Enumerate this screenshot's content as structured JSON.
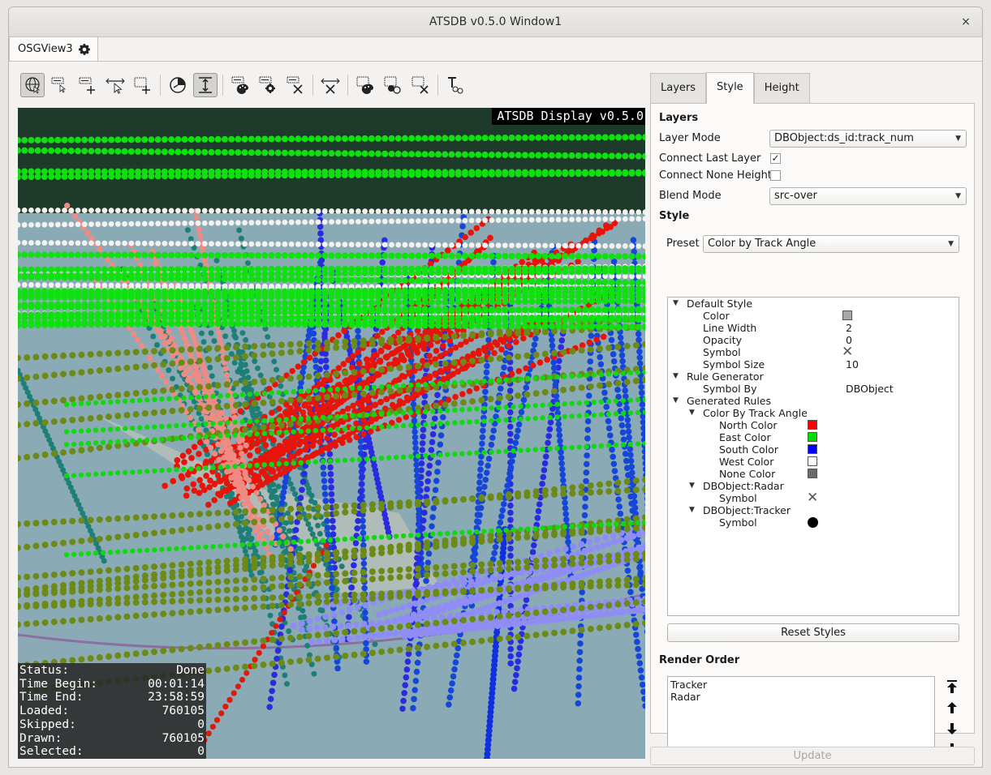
{
  "window": {
    "title": "ATSDB v0.5.0 Window1",
    "close_glyph": "×"
  },
  "doc_tab": {
    "label": "OSGView3",
    "icon": "gear-icon"
  },
  "toolbar": {
    "tools": [
      "navigate-globe-icon",
      "select-label-icon",
      "add-label-icon",
      "select-pointer-icon",
      "add-selection-icon",
      "time-filter-icon",
      "height-scale-icon",
      "label-palette-icon",
      "label-settings-icon",
      "label-clear-icon",
      "clear-selection-icon",
      "select-palette-icon",
      "select-colors-icon",
      "selection-clear-icon",
      "text-tool-icon"
    ],
    "active": "height-scale-icon"
  },
  "viewport": {
    "display_label": "ATSDB Display v0.5.0",
    "status": [
      {
        "key": "Status:",
        "value": "Done"
      },
      {
        "key": "Time Begin:",
        "value": "00:01:14"
      },
      {
        "key": "Time End:",
        "value": "23:58:59"
      },
      {
        "key": "Loaded:",
        "value": "760105"
      },
      {
        "key": "Skipped:",
        "value": "0"
      },
      {
        "key": "Drawn:",
        "value": "760105"
      },
      {
        "key": "Selected:",
        "value": "0"
      }
    ]
  },
  "right_panel": {
    "tabs": [
      "Layers",
      "Style",
      "Height"
    ],
    "active_tab": "Style",
    "layers_section": "Layers",
    "layer_mode_label": "Layer Mode",
    "layer_mode_value": "DBObject:ds_id:track_num",
    "connect_last_label": "Connect Last Layer",
    "connect_last_checked": "✓",
    "connect_none_label": "Connect None Height",
    "blend_mode_label": "Blend Mode",
    "blend_mode_value": "src-over",
    "style_section": "Style",
    "preset_label": "Preset",
    "preset_value": "Color by Track Angle",
    "tree": {
      "default_style": "Default Style",
      "color_label": "Color",
      "line_width_label": "Line Width",
      "line_width_value": "2",
      "opacity_label": "Opacity",
      "opacity_value": "0",
      "symbol_label": "Symbol",
      "symbol_size_label": "Symbol Size",
      "symbol_size_value": "10",
      "rule_generator": "Rule Generator",
      "symbol_by_label": "Symbol By",
      "symbol_by_value": "DBObject",
      "generated_rules": "Generated Rules",
      "color_by_track_angle": "Color By Track Angle",
      "north_color": "North Color",
      "east_color": "East Color",
      "south_color": "South Color",
      "west_color": "West Color",
      "none_color": "None Color",
      "dbobject_radar": "DBObject:Radar",
      "radar_symbol": "Symbol",
      "dbobject_tracker": "DBObject:Tracker",
      "tracker_symbol": "Symbol"
    },
    "colors": {
      "default": "#a8a8a8",
      "north": "#ff0000",
      "east": "#00e000",
      "south": "#0000ff",
      "west": "#ffffff",
      "none": "#6a6a6a"
    },
    "reset_button": "Reset Styles",
    "render_order_title": "Render Order",
    "render_order_items": [
      "Tracker",
      "Radar"
    ],
    "update_button": "Update"
  }
}
